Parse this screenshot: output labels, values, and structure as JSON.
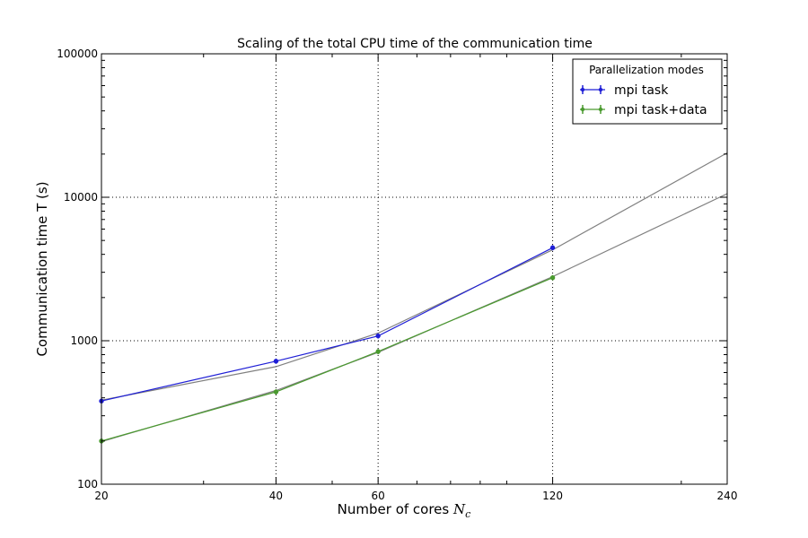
{
  "chart_data": {
    "type": "line",
    "title": "Scaling of the total CPU time of the communication time",
    "xlabel": "Number of cores",
    "xlabel_symbol": "N",
    "xlabel_subscript": "c",
    "ylabel": "Communication time T (s)",
    "xscale": "log",
    "yscale": "log",
    "xlim": [
      20,
      240
    ],
    "ylim": [
      100,
      100000
    ],
    "xticks": [
      20,
      40,
      60,
      120,
      240
    ],
    "yticks": [
      100,
      1000,
      10000,
      100000
    ],
    "grid": true,
    "legend": {
      "title": "Parallelization modes",
      "placement": "top-right"
    },
    "series": [
      {
        "name": "mpi task",
        "color": "#1f1fd6",
        "x": [
          20,
          40,
          60,
          120
        ],
        "y": [
          380,
          720,
          1080,
          4450
        ],
        "errorbars": true
      },
      {
        "name": "mpi task+data",
        "color": "#4a9a2f",
        "x": [
          20,
          40,
          60,
          120
        ],
        "y": [
          200,
          440,
          840,
          2750
        ],
        "errorbars": true
      }
    ],
    "fits": [
      {
        "color": "#808080",
        "x": [
          20,
          40,
          60,
          120,
          240
        ],
        "y": [
          385,
          660,
          1130,
          4300,
          20400
        ]
      },
      {
        "color": "#808080",
        "x": [
          20,
          40,
          60,
          120,
          240
        ],
        "y": [
          198,
          450,
          830,
          2800,
          10600
        ]
      }
    ]
  }
}
